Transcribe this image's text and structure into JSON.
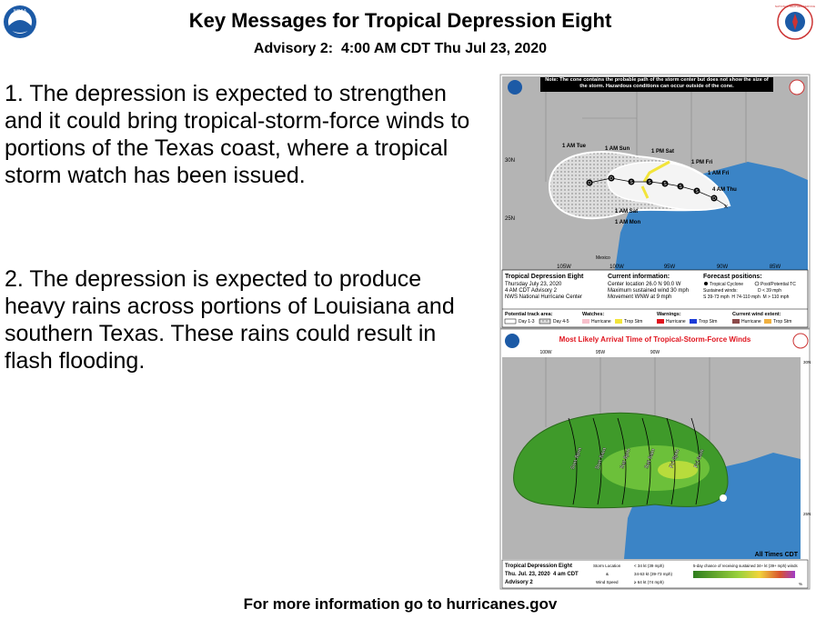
{
  "header": {
    "title": "Key Messages for Tropical Depression Eight",
    "subtitle": "Advisory 2:  4:00 AM CDT Thu Jul 23, 2020"
  },
  "logos": {
    "left": "NOAA",
    "right": "NATIONAL WEATHER SERVICE"
  },
  "messages": [
    "1. The depression is expected to strengthen and it could bring tropical-storm-force winds to portions of the Texas coast, where a tropical storm watch has been issued.",
    "2. The depression is expected to produce heavy rains across portions of Louisiana and southern Texas. These rains could result in flash flooding."
  ],
  "cone_map": {
    "note": "Note: The cone contains the probable path of the storm center but does not show the size of the storm. Hazardous conditions can occur outside of the cone.",
    "times": [
      "1 AM Tue",
      "1 AM Sun",
      "1 PM Sat",
      "1 PM Fri",
      "1 AM Fri",
      "4 AM Thu",
      "1 AM Sat",
      "1 AM Mon"
    ],
    "points": [
      "D",
      "D",
      "S",
      "S",
      "S",
      "S",
      "S",
      "D"
    ],
    "lat": [
      "30N",
      "25N"
    ],
    "lon": [
      "105W",
      "100W",
      "95W",
      "90W",
      "85W"
    ],
    "country": "Mexico",
    "legend": {
      "storm": "Tropical Depression Eight",
      "date": "Thursday July 23, 2020",
      "advisory": "4 AM CDT Advisory 2",
      "center": "NWS National Hurricane Center",
      "current_title": "Current information:",
      "location": "Center location 26.0 N 90.0 W",
      "wind": "Maximum sustained wind 30 mph",
      "movement": "Movement WNW at 9 mph",
      "forecast_title": "Forecast positions:",
      "tc": "Tropical Cyclone",
      "ptc": "Post/Potential TC",
      "sustained": "Sustained winds:",
      "d": "D < 39 mph",
      "scale": "S 39-73 mph  H 74-110 mph  M > 110 mph",
      "track_title": "Potential track area:",
      "day13": "Day 1-3",
      "day45": "Day 4-5",
      "watches": "Watches:",
      "warnings": "Warnings:",
      "extent": "Current wind extent:",
      "hurricane": "Hurricane",
      "trop": "Trop Stm"
    }
  },
  "arrival_map": {
    "title": "Most Likely Arrival Time of Tropical-Storm-Force Winds",
    "lon": [
      "100W",
      "95W",
      "90W"
    ],
    "lat": [
      "30N",
      "25N"
    ],
    "contours": [
      "Sun 8pm",
      "Sun 8am",
      "Sat 8pm",
      "Sat 8am",
      "Fri 8pm",
      "Fri 8am"
    ],
    "times_note": "All Times CDT",
    "legend": {
      "storm": "Tropical Depression Eight",
      "date": "Thu. Jul. 23, 2020  4 am CDT",
      "advisory": "Advisory 2",
      "loc": "Storm Location",
      "amp": "&",
      "ws": "Wind Speed",
      "w1": "< 34 kt (39 mph)",
      "w2": "34-63 kt (39-73 mph)",
      "w3": "≥ 64 kt (74 mph)",
      "chance": "5-day chance of receiving sustained 34+ kt (39+ mph) winds",
      "scale": [
        5,
        10,
        20,
        30,
        40,
        50,
        60,
        70,
        80,
        90,
        100
      ],
      "unit": "%"
    }
  },
  "footer": "For more information go to hurricanes.gov"
}
